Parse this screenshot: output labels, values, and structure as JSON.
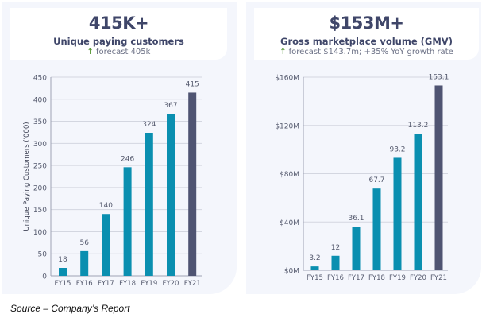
{
  "left_panel": {
    "headline": "415K+",
    "subtitle": "Unique paying customers",
    "forecast_icon": "arrow-up-icon",
    "forecast": "forecast 405k"
  },
  "right_panel": {
    "headline": "$153M+",
    "subtitle": "Gross marketplace volume (GMV)",
    "forecast_icon": "arrow-up-icon",
    "forecast": "forecast $143.7m; +35% YoY growth rate"
  },
  "source": "Source – Company’s Report",
  "colors": {
    "bar": "#0a8fb0",
    "bar_highlight": "#4f5472",
    "grid": "#d3d6e0",
    "axis": "#9ea3b5",
    "tick_text": "#555a6e"
  },
  "chart_data": [
    {
      "type": "bar",
      "title": "Unique paying customers",
      "xlabel": "",
      "ylabel": "Unique Paying Customers ('000)",
      "categories": [
        "FY15",
        "FY16",
        "FY17",
        "FY18",
        "FY19",
        "FY20",
        "FY21"
      ],
      "values": [
        18,
        56,
        140,
        246,
        324,
        367,
        415
      ],
      "data_labels": [
        "18",
        "56",
        "140",
        "246",
        "324",
        "367",
        "415"
      ],
      "highlight_index": 6,
      "ylim": [
        0,
        450
      ],
      "yticks": [
        0,
        50,
        100,
        150,
        200,
        250,
        300,
        350,
        400,
        450
      ],
      "ytick_labels": [
        "0",
        "50",
        "100",
        "150",
        "200",
        "250",
        "300",
        "350",
        "400",
        "450"
      ],
      "grid": true,
      "legend": "none"
    },
    {
      "type": "bar",
      "title": "Gross marketplace volume (GMV)",
      "xlabel": "",
      "ylabel": "",
      "categories": [
        "FY15",
        "FY16",
        "FY17",
        "FY18",
        "FY19",
        "FY20",
        "FY21"
      ],
      "values": [
        3.2,
        12,
        36.1,
        67.7,
        93.2,
        113.2,
        153.1
      ],
      "data_labels": [
        "3.2",
        "12",
        "36.1",
        "67.7",
        "93.2",
        "113.2",
        "153.1"
      ],
      "highlight_index": 6,
      "ylim": [
        0,
        160
      ],
      "yticks": [
        0,
        40,
        80,
        120,
        160
      ],
      "ytick_labels": [
        "$0M",
        "$40M",
        "$80M",
        "$120M",
        "$160M"
      ],
      "grid": true,
      "legend": "none"
    }
  ]
}
